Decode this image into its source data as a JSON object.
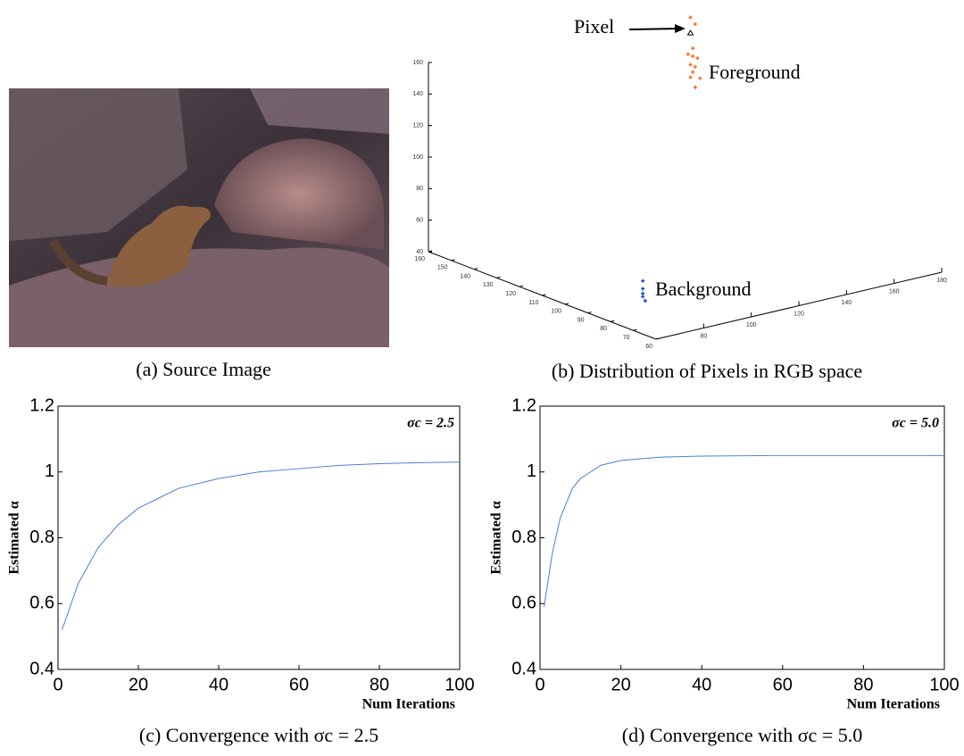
{
  "image_panel": {
    "caption": "(a) Source Image"
  },
  "chart_data": [
    {
      "type": "scatter3d",
      "caption": "(b) Distribution of Pixels in RGB space",
      "annotations": [
        "Pixel",
        "Foreground",
        "Background"
      ],
      "xlim": [
        60,
        160
      ],
      "xticks": [
        60,
        70,
        80,
        90,
        100,
        110,
        120,
        130,
        140,
        150,
        160
      ],
      "ylim": [
        60,
        180
      ],
      "yticks": [
        80,
        100,
        120,
        140,
        160,
        180
      ],
      "zlim": [
        40,
        160
      ],
      "zticks": [
        40,
        60,
        80,
        100,
        120,
        140,
        160
      ],
      "series": [
        {
          "marker": "+",
          "color": "#ff6a1a",
          "x": [
            70,
            70,
            70,
            70,
            70,
            70,
            70,
            70,
            70,
            70,
            70,
            70
          ],
          "y": [
            84,
            86,
            85,
            83,
            85,
            87,
            84,
            86,
            85,
            88,
            84,
            86
          ],
          "z": [
            230,
            225,
            210,
            207,
            205,
            203,
            200,
            198,
            195,
            190,
            192,
            185
          ]
        },
        {
          "marker": "+",
          "color": "#1a4bd1",
          "x": [
            70,
            70,
            70,
            70,
            70
          ],
          "y": [
            64,
            64,
            64,
            64,
            65
          ],
          "z": [
            70,
            65,
            62,
            60,
            57
          ]
        },
        {
          "marker": "triangle",
          "color": "#000000",
          "x": [
            70
          ],
          "y": [
            84
          ],
          "z": [
            220
          ]
        }
      ]
    },
    {
      "type": "line",
      "caption": "(c) Convergence with σc = 2.5",
      "annotation": "σc = 2.5",
      "xlabel": "Num Iterations",
      "ylabel": "Estimated α",
      "xlim": [
        0,
        100
      ],
      "xticks": [
        0,
        20,
        40,
        60,
        80,
        100
      ],
      "ylim": [
        0.4,
        1.2
      ],
      "yticks": [
        0.4,
        0.6,
        0.8,
        1,
        1.2
      ],
      "color": "#4a7fd6",
      "x": [
        1,
        5,
        10,
        15,
        20,
        25,
        30,
        40,
        50,
        60,
        70,
        80,
        90,
        100
      ],
      "values": [
        0.52,
        0.66,
        0.77,
        0.84,
        0.89,
        0.92,
        0.95,
        0.98,
        1.0,
        1.01,
        1.02,
        1.025,
        1.028,
        1.03
      ]
    },
    {
      "type": "line",
      "caption": "(d) Convergence with σc = 5.0",
      "annotation": "σc = 5.0",
      "xlabel": "Num Iterations",
      "ylabel": "Estimated α",
      "xlim": [
        0,
        100
      ],
      "xticks": [
        0,
        20,
        40,
        60,
        80,
        100
      ],
      "ylim": [
        0.4,
        1.2
      ],
      "yticks": [
        0.4,
        0.6,
        0.8,
        1,
        1.2
      ],
      "color": "#4a7fd6",
      "x": [
        1,
        3,
        5,
        8,
        10,
        15,
        20,
        30,
        40,
        60,
        100
      ],
      "values": [
        0.59,
        0.75,
        0.86,
        0.95,
        0.98,
        1.02,
        1.035,
        1.045,
        1.048,
        1.05,
        1.05
      ]
    }
  ]
}
